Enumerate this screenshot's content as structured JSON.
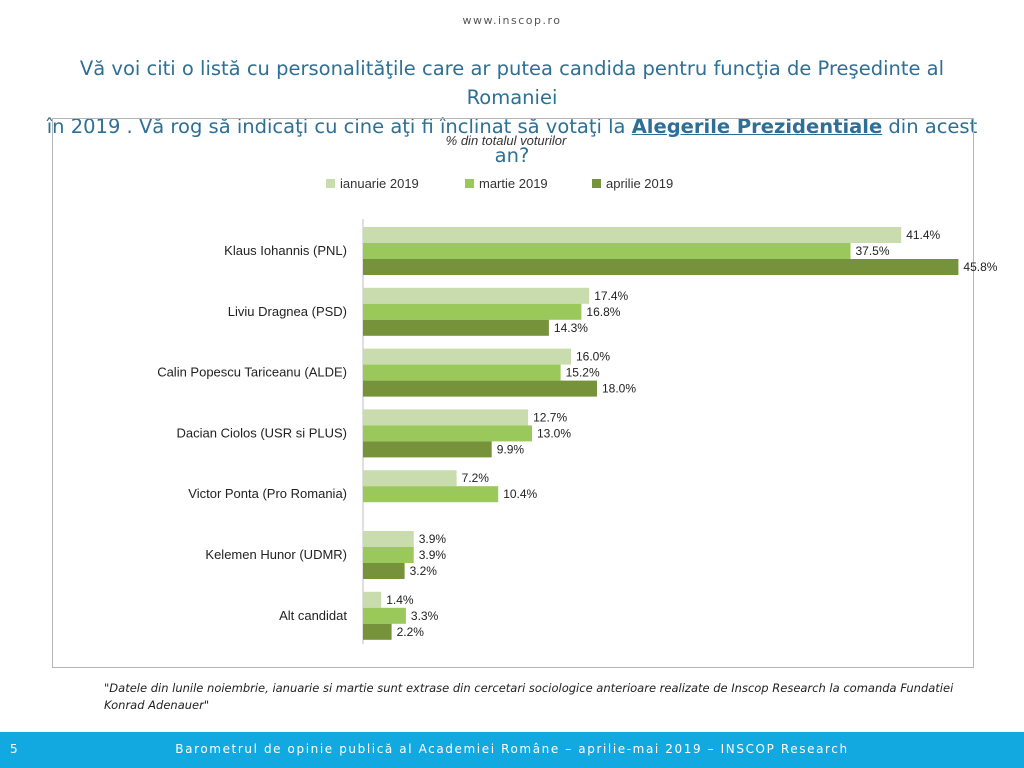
{
  "site": {
    "url": "www.inscop.ro"
  },
  "question": {
    "line1": "Vă voi citi o listă cu personalităţile care ar putea candida pentru funcţia de Preşedinte al Romaniei",
    "line2_before": "în 2019 . Vă rog să indicaţi  cu cine aţi fi înclinat să votaţi la ",
    "line2_emph": "Alegerile Prezidentiale",
    "line2_after": " din acest an?"
  },
  "chart_data": {
    "type": "bar",
    "orientation": "horizontal",
    "title": "% din totalul voturilor",
    "legend_position": "top",
    "value_suffix": "%",
    "categories": [
      "Klaus Iohannis (PNL)",
      "Liviu Dragnea (PSD)",
      "Calin Popescu Tariceanu (ALDE)",
      "Dacian Ciolos (USR si PLUS)",
      "Victor Ponta (Pro Romania)",
      "Kelemen Hunor (UDMR)",
      "Alt candidat"
    ],
    "series": [
      {
        "name": "ianuarie 2019",
        "color": "#c9dcae",
        "values": [
          41.4,
          17.4,
          16.0,
          12.7,
          7.2,
          3.9,
          1.4
        ]
      },
      {
        "name": "martie 2019",
        "color": "#9bc85b",
        "values": [
          37.5,
          16.8,
          15.2,
          13.0,
          10.4,
          3.9,
          3.3
        ]
      },
      {
        "name": "aprilie 2019",
        "color": "#76933c",
        "values": [
          45.8,
          14.3,
          18.0,
          9.9,
          null,
          3.2,
          2.2
        ]
      }
    ],
    "xlim": [
      0,
      50
    ],
    "grid": false
  },
  "footnote": "\"Datele din lunile noiembrie, ianuarie si martie sunt extrase din cercetari sociologice anterioare realizate de Inscop Research la comanda Fundatiei Konrad Adenauer\"",
  "footer": {
    "page_number": "5",
    "text": "Barometrul de opinie publică al Academiei Române – aprilie-mai 2019 – INSCOP Research"
  }
}
